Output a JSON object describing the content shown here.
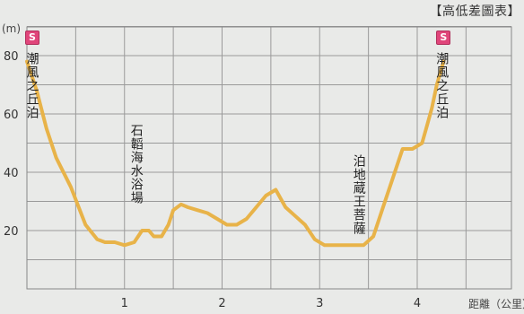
{
  "chart_data": {
    "type": "line",
    "title": "【高低差圖表】",
    "ylabel": "(m)",
    "xlabel": "距離（公里）",
    "xlim": [
      0,
      4.35
    ],
    "ylim": [
      0,
      90
    ],
    "yticks": [
      20,
      40,
      60,
      80
    ],
    "xticks": [
      1,
      2,
      3,
      4
    ],
    "grid": true,
    "line_color": "#e8b349",
    "series": [
      {
        "x": [
          0.0,
          0.1,
          0.2,
          0.3,
          0.45,
          0.6,
          0.72,
          0.8,
          0.9,
          1.0,
          1.1,
          1.18,
          1.25,
          1.3,
          1.38,
          1.45,
          1.5,
          1.58,
          1.65,
          1.75,
          1.85,
          1.95,
          2.05,
          2.15,
          2.25,
          2.35,
          2.45,
          2.55,
          2.65,
          2.75,
          2.85,
          2.95,
          3.05,
          3.15,
          3.25,
          3.35,
          3.45,
          3.55,
          3.65,
          3.75,
          3.85,
          3.95,
          4.05,
          4.1,
          4.15,
          4.2,
          4.27
        ],
        "y": [
          78,
          68,
          55,
          45,
          35,
          22,
          17,
          16,
          16,
          15,
          16,
          20,
          20,
          18,
          18,
          22,
          27,
          29,
          28,
          27,
          26,
          24,
          22,
          22,
          24,
          28,
          32,
          34,
          28,
          25,
          22,
          17,
          15,
          15,
          15,
          15,
          15,
          18,
          28,
          38,
          48,
          48,
          50,
          56,
          62,
          70,
          78
        ]
      }
    ],
    "annotations": [
      {
        "x": 0.05,
        "text": "潮風之丘泊"
      },
      {
        "x": 1.12,
        "text": "石韜海水浴場"
      },
      {
        "x": 3.4,
        "text": "泊地蔵王菩薩"
      },
      {
        "x": 4.25,
        "text": "潮風之丘泊"
      }
    ],
    "markers": [
      {
        "x": 0.0,
        "label": "S"
      },
      {
        "x": 4.27,
        "label": "S"
      }
    ]
  }
}
